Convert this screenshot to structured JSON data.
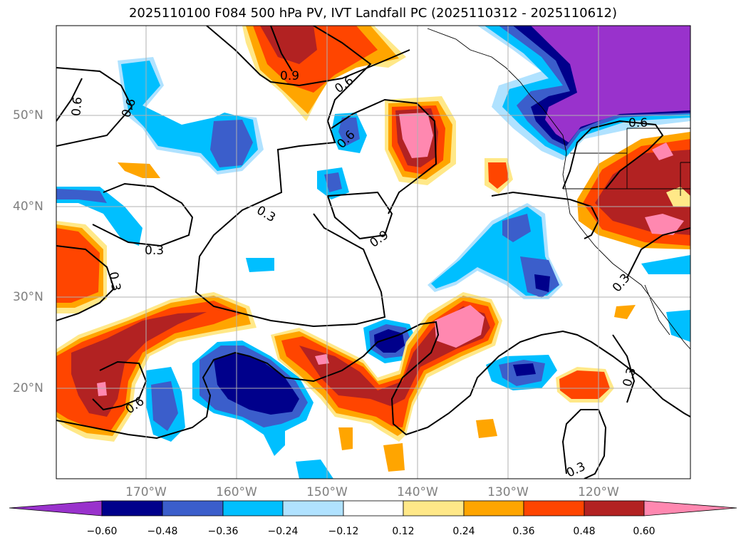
{
  "title": "2025110100 F084 500 hPa PV, IVT Landfall PC (2025110312 - 2025110612)",
  "map": {
    "lat_labels": [
      "50°N",
      "40°N",
      "30°N",
      "20°N"
    ],
    "lon_labels": [
      "170°W",
      "160°W",
      "150°W",
      "140°W",
      "130°W",
      "120°W"
    ],
    "contour_labels": [
      "0.9",
      "0.6",
      "0.6",
      "0.6",
      "0.6",
      "0.3",
      "0.3",
      "0.3",
      "0.9",
      "0.6",
      "0.6",
      "0.3",
      "0.3",
      "0.3"
    ]
  },
  "colorbar": {
    "labels": [
      "−0.60",
      "−0.48",
      "−0.36",
      "−0.24",
      "−0.12",
      "0.12",
      "0.24",
      "0.36",
      "0.48",
      "0.60"
    ],
    "colors": [
      "#9932cc",
      "#00008b",
      "#3b5ecb",
      "#00bfff",
      "#b0e2ff",
      "#ffffff",
      "#ffe888",
      "#ffa500",
      "#ff4500",
      "#b22222",
      "#ff88b0",
      "#ff88b0"
    ]
  }
}
